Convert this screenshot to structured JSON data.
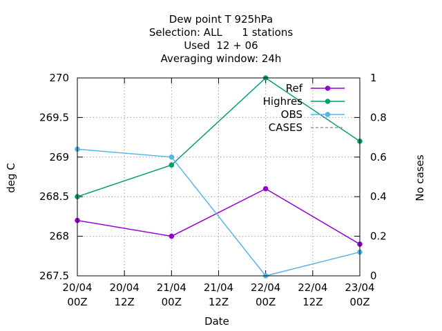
{
  "chart_data": {
    "type": "line",
    "title_lines": [
      "Dew point T 925hPa",
      "Selection: ALL      1 stations",
      "Used  12 + 06",
      "Averaging window: 24h"
    ],
    "xlabel": "Date",
    "ylabel": "deg C",
    "y2label": "No cases",
    "x_ticks": [
      {
        "line1": "20/04",
        "line2": "00Z",
        "t": 0
      },
      {
        "line1": "20/04",
        "line2": "12Z",
        "t": 12
      },
      {
        "line1": "21/04",
        "line2": "00Z",
        "t": 24
      },
      {
        "line1": "21/04",
        "line2": "12Z",
        "t": 36
      },
      {
        "line1": "22/04",
        "line2": "00Z",
        "t": 48
      },
      {
        "line1": "22/04",
        "line2": "12Z",
        "t": 60
      },
      {
        "line1": "23/04",
        "line2": "00Z",
        "t": 72
      }
    ],
    "x_range": [
      0,
      72
    ],
    "ylim": [
      267.5,
      270
    ],
    "y_ticks": [
      "267.5",
      "268",
      "268.5",
      "269",
      "269.5",
      "270"
    ],
    "y2lim": [
      0,
      1
    ],
    "y2_ticks": [
      "0",
      "0.2",
      "0.4",
      "0.6",
      "0.8",
      "1"
    ],
    "grid": true,
    "legend_position": "top-right",
    "series": [
      {
        "name": "Ref",
        "color": "#9400d3",
        "marker": "point",
        "points": [
          [
            0,
            268.2
          ],
          [
            24,
            268.0
          ],
          [
            48,
            268.6
          ],
          [
            72,
            267.9
          ]
        ]
      },
      {
        "name": "Highres",
        "color": "#009e73",
        "marker": "point",
        "points": [
          [
            0,
            268.5
          ],
          [
            24,
            268.9
          ],
          [
            48,
            270.0
          ],
          [
            72,
            269.2
          ]
        ]
      },
      {
        "name": "OBS",
        "color": "#56b4e9",
        "marker": "point",
        "points": [
          [
            0,
            269.1
          ],
          [
            24,
            269.0
          ],
          [
            48,
            267.5
          ],
          [
            72,
            267.8
          ]
        ]
      },
      {
        "name": "CASES",
        "color": "#999999",
        "marker": "none",
        "dashed": true,
        "points": []
      }
    ]
  }
}
